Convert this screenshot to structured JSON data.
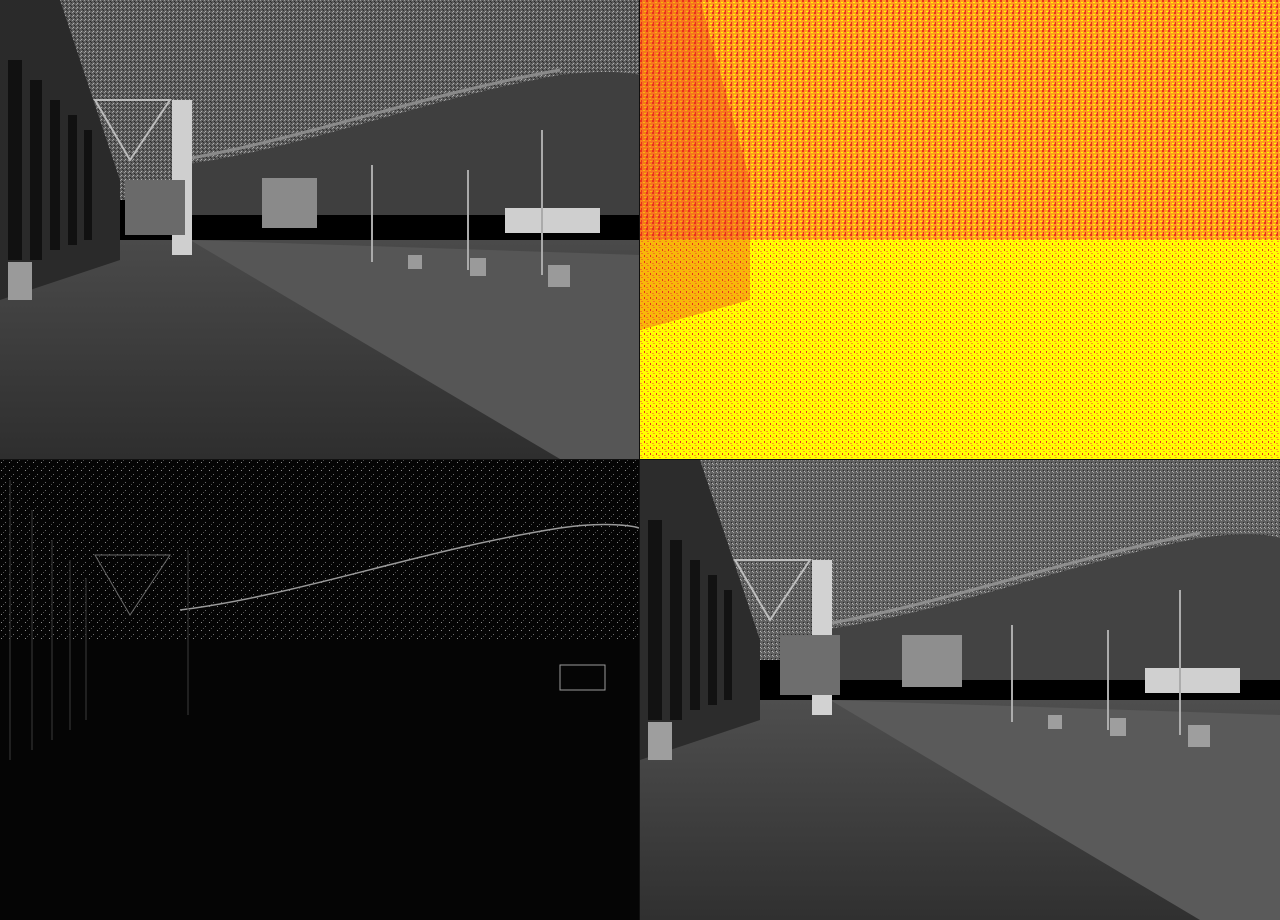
{
  "panels": [
    {
      "id": "top-left",
      "kind": "grayscale-scene",
      "colors": {
        "sky": "#6a6a6a",
        "hill": "#444444",
        "ground": "#3a3a3a",
        "plaza": "#4e4e4e"
      }
    },
    {
      "id": "top-right",
      "kind": "heatmap-scene",
      "colors": {
        "low": "#ffff00",
        "mid": "#ff9a1f",
        "high": "#e8321e"
      }
    },
    {
      "id": "bottom-left",
      "kind": "edge-scene",
      "colors": {
        "background": "#050505",
        "edge": "#9a9a9a"
      }
    },
    {
      "id": "bottom-right",
      "kind": "grayscale-scene",
      "colors": {
        "sky": "#6e6e6e",
        "hill": "#474747",
        "ground": "#3c3c3c",
        "plaza": "#525252"
      }
    }
  ]
}
